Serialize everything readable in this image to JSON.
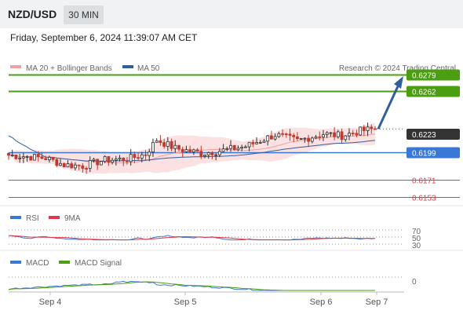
{
  "header": {
    "symbol": "NZD/USD",
    "timeframe": "30 MIN",
    "datetime": "Friday, September 6, 2024 11:39:07 AM CET"
  },
  "legend": {
    "ma20": "MA 20 + Bollinger Bands",
    "ma50": "MA 50",
    "credit": "Research © 2024 Trading Central",
    "rsi": "RSI",
    "rsi_ma": "9MA",
    "macd": "MACD",
    "macd_signal": "MACD Signal"
  },
  "colors": {
    "green": "#4a9e0f",
    "blue": "#3a78d6",
    "red": "#e0384a",
    "dark": "#333333",
    "bollinger": "#fbe1e1",
    "arrow": "#2f5f9f"
  },
  "chart_data": {
    "type": "candlestick",
    "x_labels": [
      "Sep 4",
      "Sep 5",
      "Sep 6",
      "Sep 7"
    ],
    "price_range": [
      0.6144,
      0.6283
    ],
    "last_price": "0.6223",
    "levels": [
      {
        "value": 0.6279,
        "label": "0.6279",
        "color": "#4a9e0f",
        "type": "resistance",
        "tag": true
      },
      {
        "value": 0.6262,
        "label": "0.6262",
        "color": "#4a9e0f",
        "type": "resistance",
        "tag": true
      },
      {
        "value": 0.6199,
        "label": "0.6199",
        "color": "#3a78d6",
        "type": "pivot",
        "tag": true
      },
      {
        "value": 0.6171,
        "label": "0.6171",
        "color": "#e0384a",
        "type": "support",
        "tag": false
      },
      {
        "value": 0.6153,
        "label": "0.6153",
        "color": "#e0384a",
        "type": "support",
        "tag": false
      }
    ],
    "forecast_arrow": {
      "from": 0.6223,
      "to": 0.6279
    },
    "rsi": {
      "ticks": [
        "70",
        "50",
        "30"
      ],
      "range": [
        20,
        80
      ]
    },
    "macd": {
      "ticks": [
        "0"
      ]
    }
  }
}
